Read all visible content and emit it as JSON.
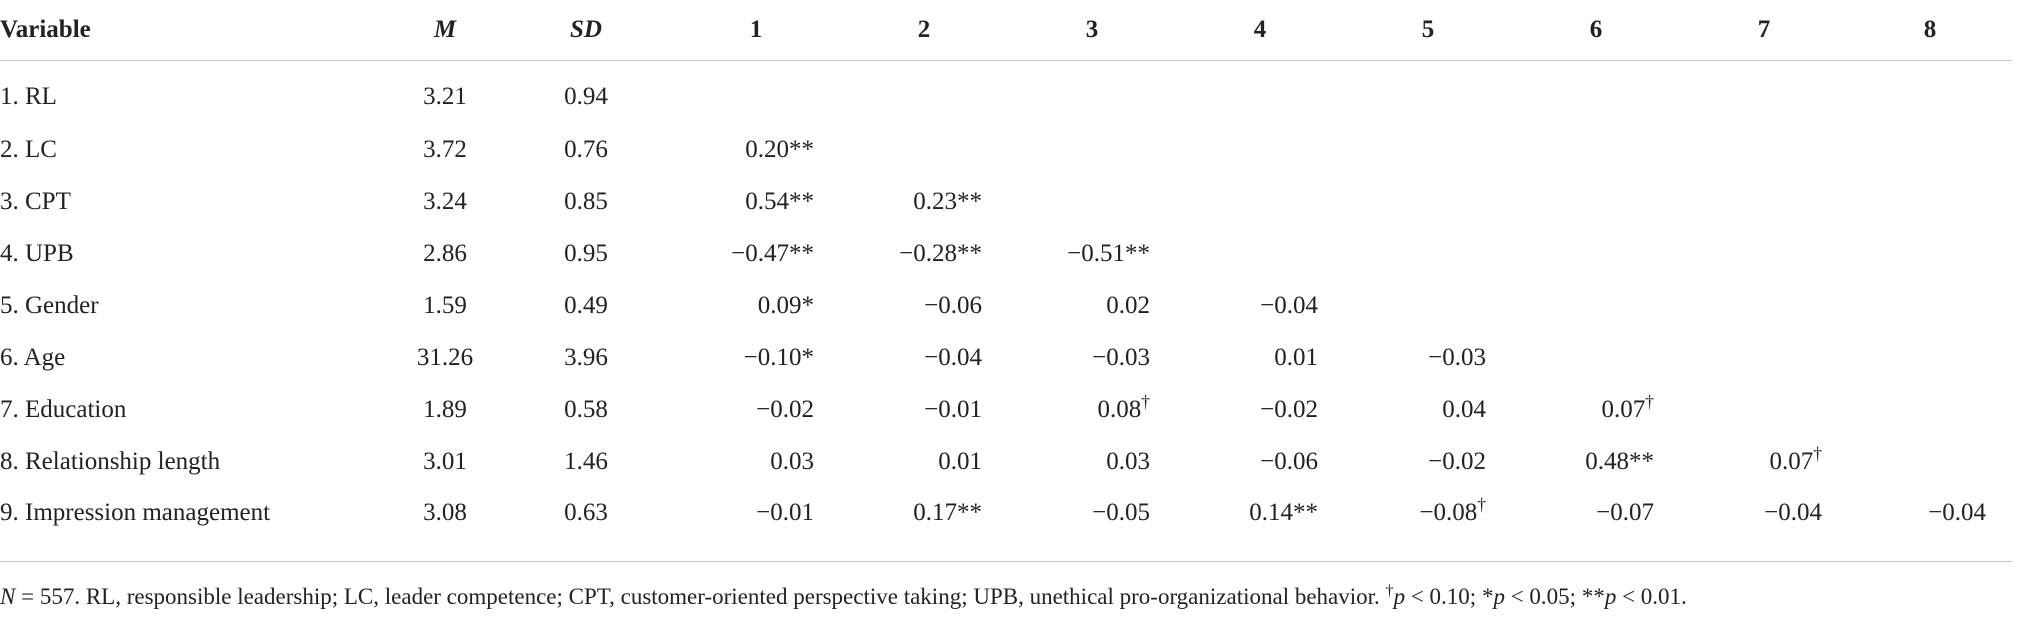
{
  "table": {
    "headers": [
      "Variable",
      "M",
      "SD",
      "1",
      "2",
      "3",
      "4",
      "5",
      "6",
      "7",
      "8"
    ],
    "rows": [
      {
        "variable": "1. RL",
        "m": "3.21",
        "sd": "0.94",
        "c1": "",
        "c2": "",
        "c3": "",
        "c4": "",
        "c5": "",
        "c6": "",
        "c7": "",
        "c8": ""
      },
      {
        "variable": "2. LC",
        "m": "3.72",
        "sd": "0.76",
        "c1": "0.20**",
        "c2": "",
        "c3": "",
        "c4": "",
        "c5": "",
        "c6": "",
        "c7": "",
        "c8": ""
      },
      {
        "variable": "3. CPT",
        "m": "3.24",
        "sd": "0.85",
        "c1": "0.54**",
        "c2": "0.23**",
        "c3": "",
        "c4": "",
        "c5": "",
        "c6": "",
        "c7": "",
        "c8": ""
      },
      {
        "variable": "4. UPB",
        "m": "2.86",
        "sd": "0.95",
        "c1": "−0.47**",
        "c2": "−0.28**",
        "c3": "−0.51**",
        "c4": "",
        "c5": "",
        "c6": "",
        "c7": "",
        "c8": ""
      },
      {
        "variable": "5. Gender",
        "m": "1.59",
        "sd": "0.49",
        "c1": "0.09*",
        "c2": "−0.06",
        "c3": "0.02",
        "c4": "−0.04",
        "c5": "",
        "c6": "",
        "c7": "",
        "c8": ""
      },
      {
        "variable": "6. Age",
        "m": "31.26",
        "sd": "3.96",
        "c1": "−0.10*",
        "c2": "−0.04",
        "c3": "−0.03",
        "c4": "0.01",
        "c5": "−0.03",
        "c6": "",
        "c7": "",
        "c8": ""
      },
      {
        "variable": "7. Education",
        "m": "1.89",
        "sd": "0.58",
        "c1": "−0.02",
        "c2": "−0.01",
        "c3": "0.08†",
        "c4": "−0.02",
        "c5": "0.04",
        "c6": "0.07†",
        "c7": "",
        "c8": ""
      },
      {
        "variable": "8. Relationship length",
        "m": "3.01",
        "sd": "1.46",
        "c1": "0.03",
        "c2": "0.01",
        "c3": "0.03",
        "c4": "−0.06",
        "c5": "−0.02",
        "c6": "0.48**",
        "c7": "0.07†",
        "c8": ""
      },
      {
        "variable": "9. Impression management",
        "m": "3.08",
        "sd": "0.63",
        "c1": "−0.01",
        "c2": "0.17**",
        "c3": "−0.05",
        "c4": "0.14**",
        "c5": "−0.08†",
        "c6": "−0.07",
        "c7": "−0.04",
        "c8": "−0.04"
      }
    ]
  },
  "note": {
    "n_label": "N",
    "n_value": " = 557. RL, responsible leadership; LC, leader competence; CPT, customer-oriented perspective taking; UPB, unethical pro-organizational behavior. ",
    "dagger": "†",
    "p1_label": "p",
    "p1_value": " < 0.10; *",
    "p2_label": "p",
    "p2_value": " < 0.05; **",
    "p3_label": "p",
    "p3_value": " < 0.01."
  }
}
